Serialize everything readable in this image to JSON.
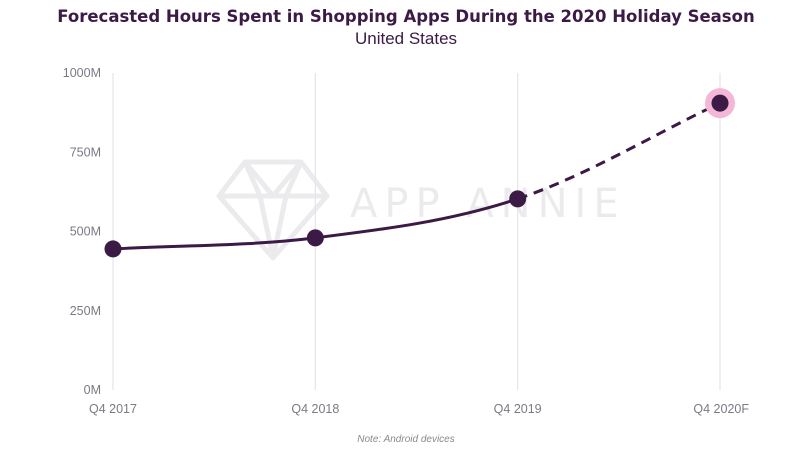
{
  "chart_data": {
    "type": "line",
    "title": "Forecasted Hours Spent in Shopping Apps During the 2020 Holiday Season",
    "subtitle": "United States",
    "categories": [
      "Q4 2017",
      "Q4 2018",
      "Q4 2019",
      "Q4 2020F"
    ],
    "series": [
      {
        "values": [
          445,
          480,
          603,
          905
        ],
        "unit": "M"
      }
    ],
    "forecast_start_index": 2,
    "highlight_index": 3,
    "yticks": [
      "0M",
      "250M",
      "500M",
      "750M",
      "1000M"
    ],
    "ylim": [
      0,
      1000
    ],
    "grid": "vertical",
    "note": "Note: Android devices",
    "watermark": "APP ANNIE",
    "colors": {
      "line": "#3b1a45",
      "highlight": "#f4b7d5",
      "grid": "#e4e4ea",
      "tick_text": "#7a7a85"
    }
  }
}
